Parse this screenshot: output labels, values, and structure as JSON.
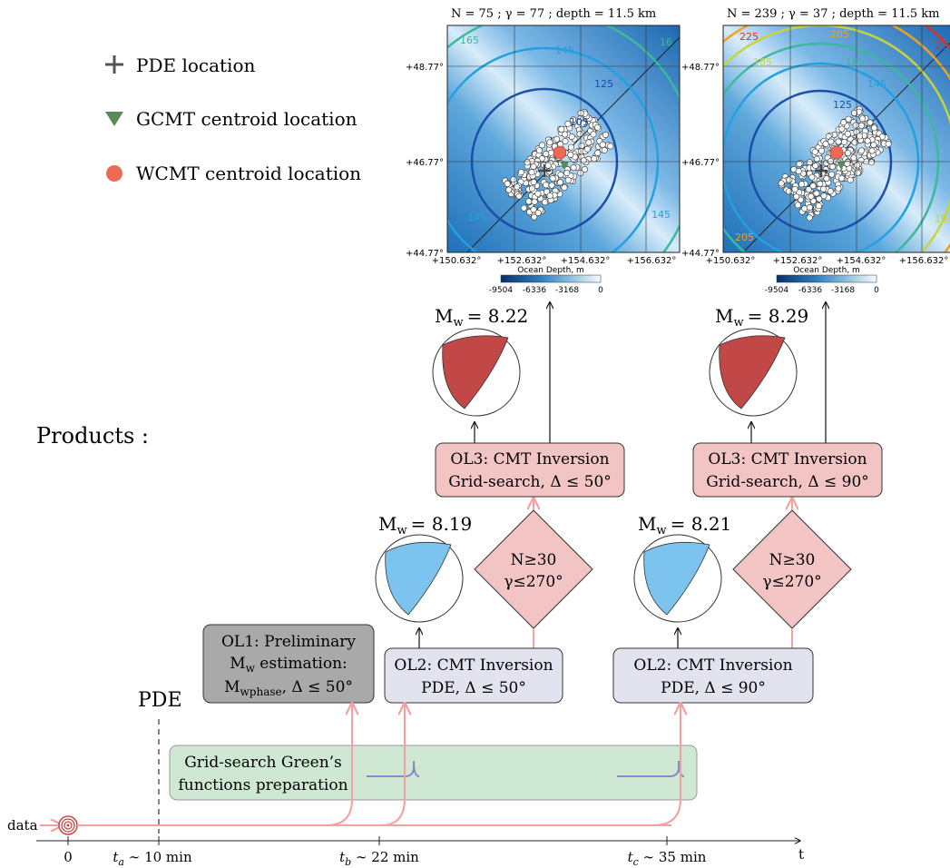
{
  "legend": {
    "pde": "PDE location",
    "gcmt": "GCMT centroid location",
    "wcmt": "WCMT centroid location"
  },
  "colors": {
    "pink_box": "#f2c4c4",
    "lavender_box": "#e3e3ef",
    "gray_box": "#a9a9a9",
    "green_band": "#cfe8d3",
    "arrow_pink": "#f4a0a0",
    "beach_red": "#c24848",
    "beach_blue": "#7cc4ef",
    "gcmt_green": "#5a8a5a",
    "wcmt_orange": "#ee6a55"
  },
  "products_label": "Products :",
  "maps": [
    {
      "title": "N = 75   ;   γ = 77   ;   depth = 11.5 km",
      "lat_labels": [
        "+48.77°",
        "+46.77°",
        "+44.77°"
      ],
      "lon_labels": [
        "+150.632°",
        "+152.632°",
        "+154.632°",
        "+156.632°"
      ],
      "contours": [
        "165",
        "145",
        "16",
        "125",
        "145",
        "105",
        "145"
      ],
      "colorbar_title": "Ocean Depth, m",
      "colorbar_ticks": [
        "-9504",
        "-6336",
        "-3168",
        "0"
      ]
    },
    {
      "title": "N = 239   ;   γ = 37   ;   depth = 11.5 km",
      "lat_labels": [
        "+48.77°",
        "+46.77°",
        "+44.77°"
      ],
      "lon_labels": [
        "+150.632°",
        "+152.632°",
        "+154.632°",
        "+156.632°"
      ],
      "contours": [
        "225",
        "205",
        "185",
        "165",
        "145",
        "125",
        "22",
        "205",
        "185"
      ],
      "colorbar_title": "Ocean Depth, m",
      "colorbar_ticks": [
        "-9504",
        "-6336",
        "-3168",
        "0"
      ]
    }
  ],
  "mw": {
    "ol3_left": {
      "prefix": "M",
      "sub": "w",
      "value": "= 8.22"
    },
    "ol3_right": {
      "prefix": "M",
      "sub": "w",
      "value": "= 8.29"
    },
    "ol2_left": {
      "prefix": "M",
      "sub": "w",
      "value": "= 8.19"
    },
    "ol2_right": {
      "prefix": "M",
      "sub": "w",
      "value": "= 8.21"
    }
  },
  "boxes": {
    "ol3_left": {
      "line1": "OL3:  CMT  Inversion",
      "line2": "Grid-search,  Δ  ≤  50°"
    },
    "ol3_right": {
      "line1": "OL3:  CMT  Inversion",
      "line2": "Grid-search,  Δ  ≤  90°"
    },
    "ol2_left": {
      "line1": "OL2:  CMT  Inversion",
      "line2": "PDE,  Δ  ≤  50°"
    },
    "ol2_right": {
      "line1": "OL2:  CMT  Inversion",
      "line2": "PDE,  Δ  ≤  90°"
    },
    "ol1": {
      "line1": "OL1:  Preliminary",
      "line2_prefix": "M",
      "line2_sub": "w",
      "line2_rest": " estimation:",
      "line3_prefix": "M",
      "line3_sub": "wphase",
      "line3_rest": ",  Δ  ≤  50°"
    },
    "green_band": {
      "line1": "Grid-search  Green’s",
      "line2": "functions  preparation"
    }
  },
  "diamonds": {
    "left": {
      "line1": "N≥30",
      "line2": "γ≤270°"
    },
    "right": {
      "line1": "N≥30",
      "line2": "γ≤270°"
    }
  },
  "timeline": {
    "data_label": "data",
    "pde_label": "PDE",
    "axis_label": "t",
    "ticks": [
      {
        "main": "0",
        "sub": "",
        "rest": ""
      },
      {
        "main": "t",
        "sub": "a",
        "rest": " ∼ 10 min"
      },
      {
        "main": "t",
        "sub": "b",
        "rest": " ∼ 22 min"
      },
      {
        "main": "t",
        "sub": "c",
        "rest": " ∼ 35 min"
      }
    ]
  }
}
